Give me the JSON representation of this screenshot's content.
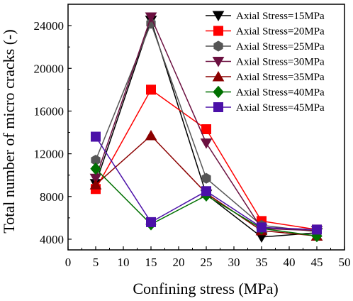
{
  "chart_data": {
    "type": "line",
    "xlabel": "Confining stress (MPa)",
    "ylabel": "Total number of micro cracks (-)",
    "xlim": [
      0,
      50
    ],
    "ylim": [
      3000,
      26000
    ],
    "xticks": [
      0,
      5,
      10,
      15,
      20,
      25,
      30,
      35,
      40,
      45,
      50
    ],
    "xtick_labels": [
      "0",
      "5",
      "10",
      "15",
      "20",
      "25",
      "30",
      "35",
      "40",
      "45",
      "50"
    ],
    "yticks": [
      4000,
      8000,
      12000,
      16000,
      20000,
      24000
    ],
    "ytick_labels": [
      "4000",
      "8000",
      "12000",
      "16000",
      "20000",
      "24000"
    ],
    "legend_position": "top-right",
    "grid": false,
    "x": [
      5,
      15,
      25,
      35,
      45
    ],
    "series": [
      {
        "name": "Axial Stress=15MPa",
        "color": "#000000",
        "marker": "triangle-down",
        "values": [
          9200,
          24500,
          8200,
          4200,
          4600
        ]
      },
      {
        "name": "Axial Stress=20MPa",
        "color": "#ff0000",
        "marker": "square",
        "values": [
          8700,
          18000,
          14300,
          5700,
          4900
        ]
      },
      {
        "name": "Axial Stress=25MPa",
        "color": "#555555",
        "marker": "hexagon",
        "values": [
          11400,
          24200,
          9700,
          5300,
          4700
        ]
      },
      {
        "name": "Axial Stress=30MPa",
        "color": "#6b1040",
        "marker": "triangle-down",
        "values": [
          9700,
          24800,
          13000,
          5000,
          4800
        ]
      },
      {
        "name": "Axial Stress=35MPa",
        "color": "#8b0000",
        "marker": "triangle-up",
        "values": [
          9100,
          13700,
          8300,
          4800,
          4300
        ]
      },
      {
        "name": "Axial Stress=40MPa",
        "color": "#007000",
        "marker": "diamond",
        "values": [
          10600,
          5400,
          8100,
          5000,
          4300
        ]
      },
      {
        "name": "Axial Stress=45MPa",
        "color": "#4b10a8",
        "marker": "square",
        "values": [
          13600,
          5600,
          8500,
          5100,
          4900
        ]
      }
    ]
  }
}
